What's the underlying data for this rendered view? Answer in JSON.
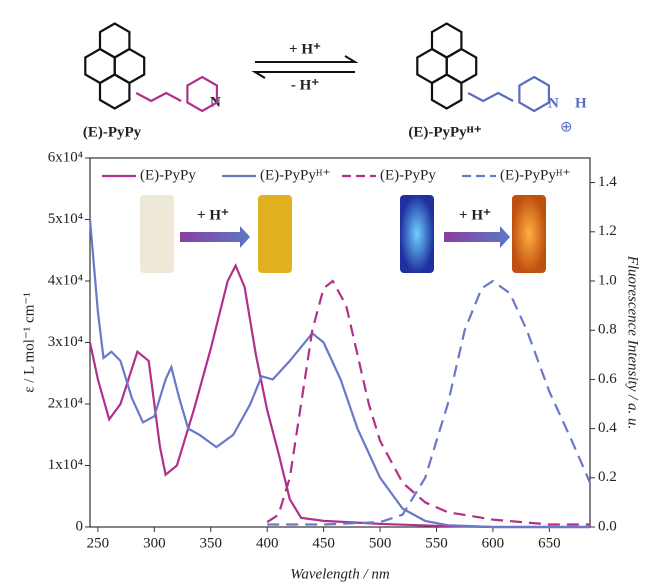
{
  "scheme": {
    "left_label": "(E)-PyPy",
    "right_label": "(E)-PyPyᴴ⁺",
    "forward": "+ H⁺",
    "backward": "- H⁺",
    "left_n": "N",
    "right_n": "N",
    "right_h": "H",
    "charge": "⊕"
  },
  "chart_data": {
    "type": "line",
    "xlabel": "Wavelength / nm",
    "ylabel": "ε / L mol⁻¹ cm⁻¹",
    "y2label": "Fluorescence Intensity / a. u.",
    "annotations": [
      "+ H⁺",
      "+ H⁺"
    ],
    "xlim": [
      243,
      686
    ],
    "xticks": [
      250,
      300,
      350,
      400,
      450,
      500,
      550,
      600,
      650
    ],
    "ylim": [
      0,
      60000
    ],
    "yticks": [
      0,
      {
        "value": 10000,
        "label": "1x10⁴"
      },
      {
        "value": 20000,
        "label": "2x10⁴"
      },
      {
        "value": 30000,
        "label": "3x10⁴"
      },
      {
        "value": 40000,
        "label": "4x10⁴"
      },
      {
        "value": 50000,
        "label": "5x10⁴"
      },
      {
        "value": 60000,
        "label": "6x10⁴"
      }
    ],
    "y2lim": [
      0,
      1.5
    ],
    "y2ticks": [
      {
        "value": 0,
        "label": "0.0"
      },
      0.2,
      0.4,
      0.6,
      0.8,
      {
        "value": 1,
        "label": "1.0"
      },
      1.2,
      1.4
    ],
    "series": [
      {
        "name": "(E)-PyPy",
        "color": "#b0308c",
        "dash": false,
        "x": [
          243,
          250,
          260,
          270,
          285,
          295,
          305,
          310,
          320,
          335,
          350,
          365,
          372,
          380,
          390,
          400,
          410,
          420,
          430,
          450,
          500,
          550,
          600,
          686
        ],
        "values": [
          30000,
          24000,
          17500,
          20000,
          28500,
          27000,
          13000,
          8500,
          10000,
          19000,
          29000,
          40000,
          42500,
          39000,
          28000,
          19000,
          12000,
          4500,
          1500,
          1000,
          500,
          200,
          0,
          0
        ]
      },
      {
        "name": "(E)-PyPyᴴ⁺",
        "color": "#6a78c8",
        "dash": false,
        "x": [
          243,
          250,
          255,
          262,
          270,
          280,
          290,
          300,
          310,
          315,
          322,
          330,
          340,
          355,
          370,
          385,
          395,
          405,
          420,
          440,
          450,
          465,
          480,
          500,
          520,
          540,
          560,
          600,
          686
        ],
        "values": [
          50000,
          35000,
          27500,
          28500,
          27000,
          21000,
          17000,
          18000,
          24000,
          26000,
          21000,
          16000,
          15000,
          13000,
          15000,
          20000,
          24500,
          24000,
          27000,
          31500,
          30000,
          24000,
          16000,
          8000,
          3000,
          1000,
          300,
          0,
          0
        ]
      },
      {
        "name": "(E)-PyPy",
        "color": "#b0308c",
        "dash": true,
        "axis": "y2",
        "x": [
          400,
          410,
          420,
          430,
          440,
          450,
          458,
          470,
          480,
          490,
          500,
          520,
          540,
          560,
          600,
          650,
          686
        ],
        "values": [
          0.02,
          0.05,
          0.2,
          0.5,
          0.8,
          0.97,
          1.0,
          0.9,
          0.7,
          0.5,
          0.35,
          0.18,
          0.1,
          0.06,
          0.03,
          0.01,
          0.01
        ]
      },
      {
        "name": "(E)-PyPyᴴ⁺",
        "color": "#6a78c8",
        "dash": true,
        "axis": "y2",
        "x": [
          400,
          450,
          500,
          520,
          540,
          560,
          575,
          590,
          600,
          615,
          630,
          650,
          670,
          686
        ],
        "values": [
          0.01,
          0.01,
          0.02,
          0.05,
          0.2,
          0.5,
          0.8,
          0.97,
          1.0,
          0.95,
          0.8,
          0.55,
          0.35,
          0.18
        ]
      }
    ]
  }
}
